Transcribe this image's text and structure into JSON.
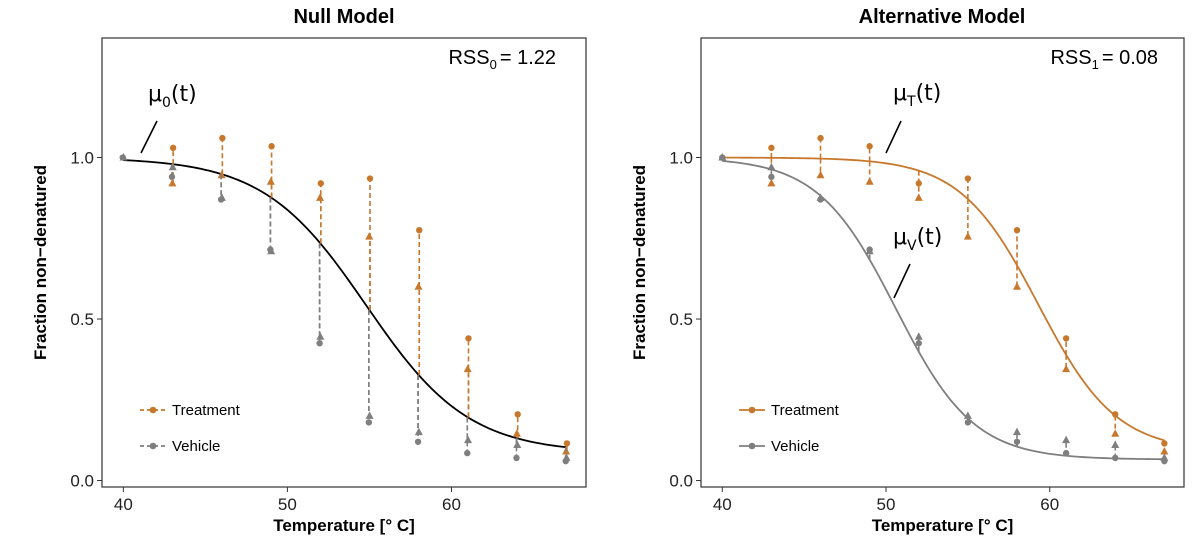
{
  "chart_data": [
    {
      "type": "scatter",
      "title": "Null Model",
      "xlabel": "Temperature [° C]",
      "ylabel": "Fraction non−denatured",
      "xlim": [
        38.7,
        68.2
      ],
      "ylim": [
        -0.02,
        1.37
      ],
      "xticks": [
        "40",
        "50",
        "60"
      ],
      "yticks": [
        "0.0",
        "0.5",
        "1.0"
      ],
      "rss": {
        "main": "RSS",
        "sub": "0",
        "value": "= 1.22"
      },
      "curve_labels": [
        {
          "mu": "μ",
          "sub": "0",
          "arg": "(t)"
        }
      ],
      "legend": {
        "position": "bottom-left",
        "treatment": "Treatment",
        "vehicle": "Vehicle"
      },
      "grid": false,
      "series": [
        {
          "name": "Treatment",
          "color": "#C8782D",
          "dashed_residuals": true,
          "rep1_circles": {
            "x": [
              43,
              46,
              49,
              52,
              55,
              58,
              61,
              64,
              67
            ],
            "y": [
              1.03,
              1.06,
              1.035,
              0.92,
              0.935,
              0.775,
              0.44,
              0.205,
              0.115
            ]
          },
          "rep2_triangles": {
            "x": [
              43,
              46,
              49,
              52,
              55,
              58,
              61,
              64,
              67
            ],
            "y": [
              0.92,
              0.945,
              0.925,
              0.875,
              0.755,
              0.6,
              0.345,
              0.145,
              0.09
            ]
          }
        },
        {
          "name": "Vehicle",
          "color": "#7F7F7F",
          "dashed_residuals": true,
          "rep1_circles": {
            "x": [
              40,
              43,
              46,
              49,
              52,
              55,
              58,
              61,
              64,
              67
            ],
            "y": [
              1.0,
              0.94,
              0.87,
              0.715,
              0.425,
              0.18,
              0.12,
              0.085,
              0.07,
              0.06
            ]
          },
          "rep2_triangles": {
            "x": [
              40,
              43,
              46,
              49,
              52,
              55,
              58,
              61,
              64,
              67
            ],
            "y": [
              1.0,
              0.97,
              0.875,
              0.71,
              0.445,
              0.2,
              0.15,
              0.125,
              0.11,
              0.07
            ]
          }
        }
      ],
      "fitted_curves": [
        {
          "label": "μ0(t)",
          "color": "#000000",
          "plateau": 0.085,
          "midpoint": 54.8,
          "slope": 0.32,
          "top": 1.0
        }
      ]
    },
    {
      "type": "scatter",
      "title": "Alternative Model",
      "xlabel": "Temperature [° C]",
      "ylabel": "Fraction non−denatured",
      "xlim": [
        38.7,
        68.2
      ],
      "ylim": [
        -0.02,
        1.37
      ],
      "xticks": [
        "40",
        "50",
        "60"
      ],
      "yticks": [
        "0.0",
        "0.5",
        "1.0"
      ],
      "rss": {
        "main": "RSS",
        "sub": "1",
        "value": "= 0.08"
      },
      "curve_labels": [
        {
          "mu": "μ",
          "sub": "T",
          "arg": "(t)"
        },
        {
          "mu": "μ",
          "sub": "V",
          "arg": "(t)"
        }
      ],
      "legend": {
        "position": "bottom-left",
        "treatment": "Treatment",
        "vehicle": "Vehicle"
      },
      "grid": false,
      "series": [
        {
          "name": "Treatment",
          "color": "#C8782D",
          "dashed_residuals": true,
          "rep1_circles": {
            "x": [
              43,
              46,
              49,
              52,
              55,
              58,
              61,
              64,
              67
            ],
            "y": [
              1.03,
              1.06,
              1.035,
              0.92,
              0.935,
              0.775,
              0.44,
              0.205,
              0.115
            ]
          },
          "rep2_triangles": {
            "x": [
              43,
              46,
              49,
              52,
              55,
              58,
              61,
              64,
              67
            ],
            "y": [
              0.92,
              0.945,
              0.925,
              0.875,
              0.755,
              0.6,
              0.345,
              0.145,
              0.09
            ]
          }
        },
        {
          "name": "Vehicle",
          "color": "#7F7F7F",
          "dashed_residuals": true,
          "rep1_circles": {
            "x": [
              40,
              43,
              46,
              49,
              52,
              55,
              58,
              61,
              64,
              67
            ],
            "y": [
              1.0,
              0.94,
              0.87,
              0.715,
              0.425,
              0.18,
              0.12,
              0.085,
              0.07,
              0.06
            ]
          },
          "rep2_triangles": {
            "x": [
              40,
              43,
              46,
              49,
              52,
              55,
              58,
              61,
              64,
              67
            ],
            "y": [
              1.0,
              0.97,
              0.875,
              0.71,
              0.445,
              0.2,
              0.15,
              0.125,
              0.11,
              0.07
            ]
          }
        }
      ],
      "fitted_curves": [
        {
          "label": "μT(t)",
          "color": "#C8782D",
          "plateau": 0.09,
          "midpoint": 59.3,
          "slope": 0.42,
          "top": 1.0
        },
        {
          "label": "μV(t)",
          "color": "#7F7F7F",
          "plateau": 0.065,
          "midpoint": 50.6,
          "slope": 0.42,
          "top": 1.0
        }
      ]
    }
  ]
}
